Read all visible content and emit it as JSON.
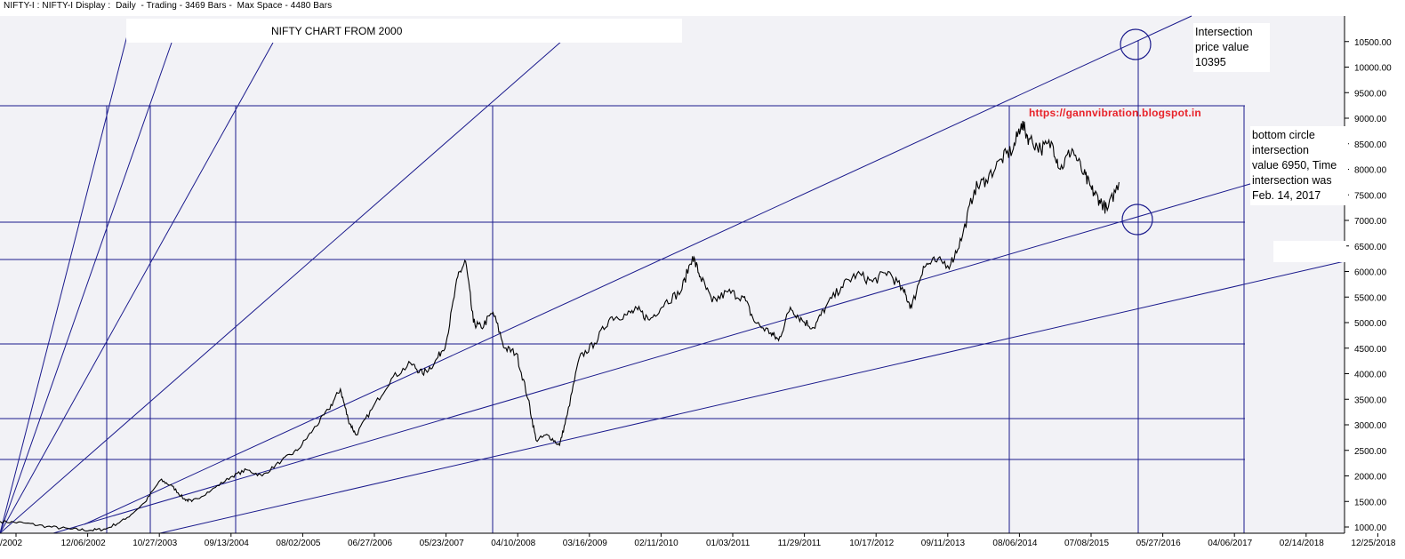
{
  "header": "NIFTY-I : NIFTY-I Display :  Daily  - Trading - 3469 Bars -  Max Space - 4480 Bars",
  "colors": {
    "plot_background": "#f2f2f6",
    "guide_lines": "#1a1a8c",
    "price_line": "#000000",
    "url": "#e8232a"
  },
  "chart_data": {
    "type": "line",
    "title": "NIFTY CHART FROM 2000",
    "xlabel": "",
    "ylabel": "",
    "x_tick_labels": [
      "/2002",
      "12/06/2002",
      "10/27/2003",
      "09/13/2004",
      "08/02/2005",
      "06/27/2006",
      "05/23/2007",
      "04/10/2008",
      "03/16/2009",
      "02/11/2010",
      "01/03/2011",
      "11/29/2011",
      "10/17/2012",
      "09/11/2013",
      "08/06/2014",
      "07/08/2015",
      "05/27/2016",
      "04/06/2017",
      "02/14/2018",
      "12/25/2018"
    ],
    "y_tick_labels": [
      "10500.00",
      "10000.00",
      "9500.00",
      "9000.00",
      "8500.00",
      "8000.00",
      "7500.00",
      "7000.00",
      "6500.00",
      "6000.00",
      "5500.00",
      "5000.00",
      "4500.00",
      "4000.00",
      "3500.00",
      "3000.00",
      "2500.00",
      "2000.00",
      "1500.00",
      "1000.00"
    ],
    "ylim": [
      950,
      10800
    ],
    "xlim": [
      2002.0,
      2019.2
    ],
    "grid": false,
    "series": [
      {
        "points": [
          [
            2002.0,
            1110
          ],
          [
            2002.3,
            1080
          ],
          [
            2002.6,
            1010
          ],
          [
            2002.9,
            960
          ],
          [
            2003.15,
            935
          ],
          [
            2003.35,
            960
          ],
          [
            2003.6,
            1150
          ],
          [
            2003.85,
            1480
          ],
          [
            2004.05,
            1920
          ],
          [
            2004.2,
            1800
          ],
          [
            2004.35,
            1550
          ],
          [
            2004.45,
            1500
          ],
          [
            2004.7,
            1720
          ],
          [
            2004.95,
            1980
          ],
          [
            2005.15,
            2120
          ],
          [
            2005.35,
            2000
          ],
          [
            2005.6,
            2300
          ],
          [
            2005.8,
            2500
          ],
          [
            2006.0,
            2900
          ],
          [
            2006.2,
            3300
          ],
          [
            2006.35,
            3700
          ],
          [
            2006.45,
            3100
          ],
          [
            2006.55,
            2800
          ],
          [
            2006.75,
            3300
          ],
          [
            2007.0,
            3900
          ],
          [
            2007.25,
            4200
          ],
          [
            2007.4,
            4000
          ],
          [
            2007.55,
            4200
          ],
          [
            2007.7,
            4600
          ],
          [
            2007.85,
            5900
          ],
          [
            2007.95,
            6200
          ],
          [
            2008.05,
            5000
          ],
          [
            2008.15,
            4900
          ],
          [
            2008.3,
            5200
          ],
          [
            2008.45,
            4500
          ],
          [
            2008.6,
            4400
          ],
          [
            2008.75,
            3500
          ],
          [
            2008.85,
            2700
          ],
          [
            2009.0,
            2800
          ],
          [
            2009.15,
            2600
          ],
          [
            2009.25,
            3200
          ],
          [
            2009.4,
            4300
          ],
          [
            2009.6,
            4600
          ],
          [
            2009.8,
            5100
          ],
          [
            2010.0,
            5150
          ],
          [
            2010.15,
            5250
          ],
          [
            2010.3,
            5050
          ],
          [
            2010.5,
            5400
          ],
          [
            2010.7,
            5600
          ],
          [
            2010.85,
            6300
          ],
          [
            2010.95,
            5900
          ],
          [
            2011.1,
            5400
          ],
          [
            2011.3,
            5600
          ],
          [
            2011.5,
            5500
          ],
          [
            2011.65,
            5000
          ],
          [
            2011.85,
            4800
          ],
          [
            2011.95,
            4650
          ],
          [
            2012.1,
            5300
          ],
          [
            2012.25,
            5050
          ],
          [
            2012.4,
            4900
          ],
          [
            2012.55,
            5300
          ],
          [
            2012.75,
            5700
          ],
          [
            2012.95,
            5950
          ],
          [
            2013.15,
            5800
          ],
          [
            2013.35,
            6000
          ],
          [
            2013.55,
            5600
          ],
          [
            2013.65,
            5300
          ],
          [
            2013.8,
            6100
          ],
          [
            2013.95,
            6200
          ],
          [
            2014.15,
            6150
          ],
          [
            2014.3,
            6700
          ],
          [
            2014.45,
            7600
          ],
          [
            2014.6,
            7800
          ],
          [
            2014.8,
            8200
          ],
          [
            2014.95,
            8400
          ],
          [
            2015.05,
            8900
          ],
          [
            2015.15,
            8600
          ],
          [
            2015.3,
            8400
          ],
          [
            2015.45,
            8500
          ],
          [
            2015.55,
            8000
          ],
          [
            2015.7,
            8400
          ],
          [
            2015.85,
            7900
          ],
          [
            2015.95,
            7600
          ],
          [
            2016.05,
            7400
          ],
          [
            2016.15,
            7200
          ],
          [
            2016.3,
            7750
          ]
        ]
      }
    ]
  },
  "labels": {
    "url": "https://gannvibration.blogspot.in",
    "note_top": [
      "Intersection",
      "price value",
      "10395"
    ],
    "note_bottom": [
      "bottom circle",
      "intersection",
      "value 6950, Time",
      "intersection was",
      "Feb. 14, 2017"
    ]
  }
}
